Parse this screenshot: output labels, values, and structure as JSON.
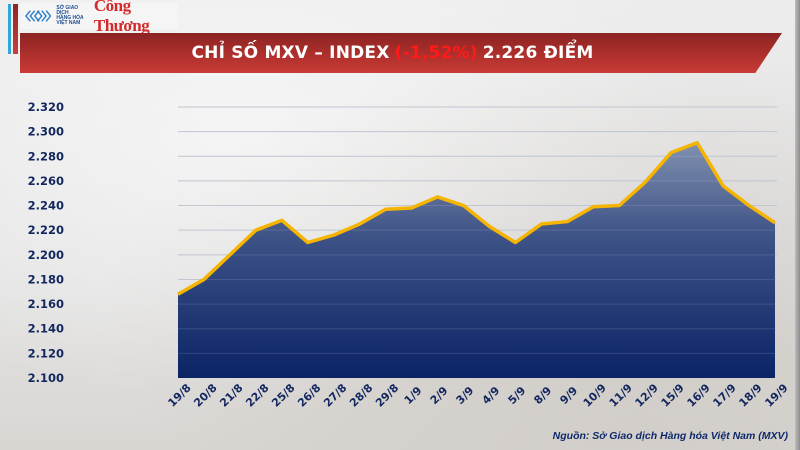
{
  "header": {
    "logo_mxv_text": [
      "SỞ GIAO DỊCH",
      "HÀNG HÓA",
      "VIỆT NAM"
    ],
    "logo_publication": "Công Thương"
  },
  "title": {
    "prefix": "CHỈ SỐ MXV – INDEX",
    "change": "(-1,52%)",
    "suffix": "2.226 ĐIỂM"
  },
  "colors": {
    "banner": "#a82d2a",
    "change_text": "#ff1a1a",
    "line": "#f5b400",
    "area_top": "#6f7fa3",
    "area_bottom": "#0b2466",
    "tick_text": "#13275f"
  },
  "footer": {
    "source": "Nguồn: Sở Giao dịch Hàng hóa Việt Nam (MXV)"
  },
  "chart_data": {
    "type": "area",
    "title": "CHỈ SỐ MXV – INDEX (-1,52%) 2.226 ĐIỂM",
    "xlabel": "",
    "ylabel": "",
    "categories": [
      "19/8",
      "20/8",
      "21/8",
      "22/8",
      "25/8",
      "26/8",
      "27/8",
      "28/8",
      "29/8",
      "1/9",
      "2/9",
      "3/9",
      "4/9",
      "5/9",
      "8/9",
      "9/9",
      "10/9",
      "11/9",
      "12/9",
      "15/9",
      "16/9",
      "17/9",
      "18/9",
      "19/9"
    ],
    "series": [
      {
        "name": "MXV-Index",
        "values": [
          2168,
          2180,
          2200,
          2220,
          2228,
          2210,
          2216,
          2225,
          2237,
          2238,
          2247,
          2240,
          2223,
          2210,
          2225,
          2227,
          2239,
          2240,
          2259,
          2283,
          2291,
          2256,
          2240,
          2226
        ]
      }
    ],
    "ylim": [
      2100,
      2320
    ],
    "yticks": [
      "2.100",
      "2.120",
      "2.140",
      "2.160",
      "2.180",
      "2.200",
      "2.220",
      "2.240",
      "2.260",
      "2.280",
      "2.300",
      "2.320"
    ],
    "grid": true,
    "legend": "none"
  }
}
